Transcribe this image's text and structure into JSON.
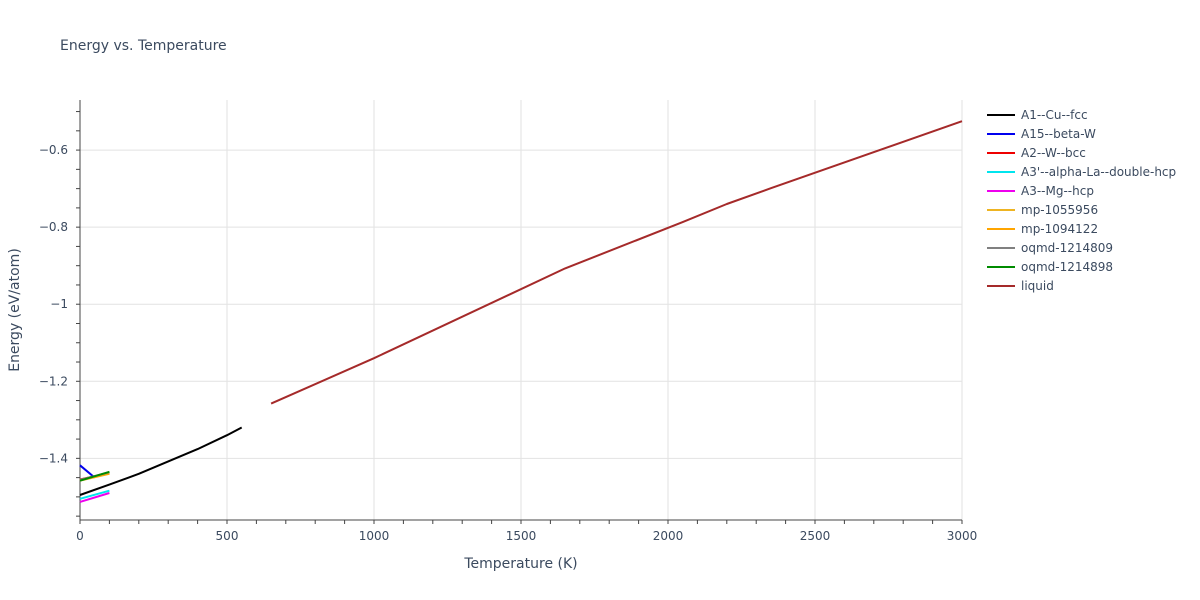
{
  "chart_data": {
    "type": "line",
    "title": "Energy vs. Temperature",
    "xlabel": "Temperature (K)",
    "ylabel": "Energy (eV/atom)",
    "xlim": [
      0,
      3000
    ],
    "ylim": [
      -1.56,
      -0.47
    ],
    "xticks": [
      0,
      500,
      1000,
      1500,
      2000,
      2500,
      3000
    ],
    "xtick_labels": [
      "0",
      "500",
      "1000",
      "1500",
      "2000",
      "2500",
      "3000"
    ],
    "yticks": [
      -1.4,
      -1.2,
      -1,
      -0.8,
      -0.6
    ],
    "ytick_labels": [
      "−1.4",
      "−1.2",
      "−1",
      "−0.8",
      "−0.6"
    ],
    "grid": true,
    "legend_position": "right",
    "series": [
      {
        "name": "A1--Cu--fcc",
        "color": "#000000",
        "x": [
          0,
          100,
          200,
          300,
          400,
          500,
          550
        ],
        "y": [
          -1.495,
          -1.468,
          -1.44,
          -1.408,
          -1.376,
          -1.34,
          -1.32
        ]
      },
      {
        "name": "A15--beta-W",
        "color": "#0000ee",
        "x": [
          0,
          50
        ],
        "y": [
          -1.418,
          -1.45
        ]
      },
      {
        "name": "A2--W--bcc",
        "color": "#ee0000",
        "x": [
          0,
          100
        ],
        "y": [
          -1.455,
          -1.438
        ]
      },
      {
        "name": "A3'--alpha-La--double-hcp",
        "color": "#00e5ee",
        "x": [
          0,
          100
        ],
        "y": [
          -1.505,
          -1.484
        ]
      },
      {
        "name": "A3--Mg--hcp",
        "color": "#ee00ee",
        "x": [
          0,
          100
        ],
        "y": [
          -1.513,
          -1.49
        ]
      },
      {
        "name": "mp-1055956",
        "color": "#eeb422",
        "x": [
          0,
          100
        ],
        "y": [
          -1.458,
          -1.44
        ]
      },
      {
        "name": "mp-1094122",
        "color": "#ffa500",
        "x": [
          0,
          100
        ],
        "y": [
          -1.457,
          -1.439
        ]
      },
      {
        "name": "oqmd-1214809",
        "color": "#808080",
        "x": [
          0,
          100
        ],
        "y": [
          -1.456,
          -1.436
        ]
      },
      {
        "name": "oqmd-1214898",
        "color": "#008b00",
        "x": [
          0,
          100
        ],
        "y": [
          -1.458,
          -1.435
        ]
      },
      {
        "name": "liquid",
        "color": "#a52a2a",
        "x": [
          650,
          1000,
          1650,
          2050,
          2200,
          2350,
          3000
        ],
        "y": [
          -1.258,
          -1.14,
          -0.907,
          -0.787,
          -0.74,
          -0.699,
          -0.525
        ]
      }
    ]
  }
}
